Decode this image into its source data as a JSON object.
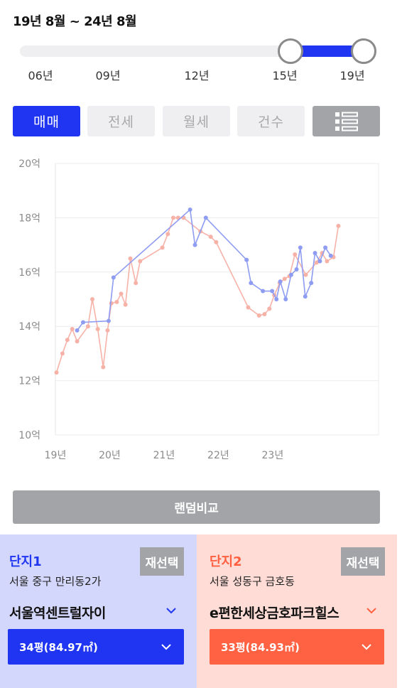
{
  "period": {
    "label": "19년 8월 ~ 24년 8월"
  },
  "slider": {
    "ticks": [
      "06년",
      "09년",
      "12년",
      "15년",
      "19년"
    ]
  },
  "tabs": [
    {
      "label": "매매",
      "active": true
    },
    {
      "label": "전세",
      "active": false
    },
    {
      "label": "월세",
      "active": false
    },
    {
      "label": "건수",
      "active": false
    }
  ],
  "view_toggle": {
    "icon": "list-view-icon"
  },
  "random_button": {
    "label": "랜덤비교"
  },
  "complex1": {
    "title": "단지1",
    "reselect": "재선택",
    "address": "서울 중구 만리동2가",
    "name": "서울역센트럴자이",
    "size": "34평(84.97㎡)",
    "color": "#1f35f2"
  },
  "complex2": {
    "title": "단지2",
    "reselect": "재선택",
    "address": "서울 성동구 금호동",
    "name": "e편한세상금호파크힐스",
    "size": "33평(84.93㎡)",
    "color": "#ff6242"
  },
  "chart_data": {
    "type": "line",
    "y_ticks": [
      "20억",
      "18억",
      "16억",
      "14억",
      "12억",
      "10억"
    ],
    "x_ticks": [
      "19년",
      "20년",
      "21년",
      "22년",
      "23년"
    ],
    "ylim": [
      10,
      20
    ],
    "xlim": [
      2019.0,
      2024.95
    ],
    "grid": true,
    "series": [
      {
        "color": "#8e9cf2",
        "points": [
          [
            2019.4,
            13.85
          ],
          [
            2019.51,
            14.15
          ],
          [
            2019.98,
            14.2
          ],
          [
            2020.07,
            15.8
          ],
          [
            2021.48,
            18.3
          ],
          [
            2021.57,
            17.0
          ],
          [
            2021.77,
            18.0
          ],
          [
            2022.52,
            16.45
          ],
          [
            2022.6,
            15.6
          ],
          [
            2022.82,
            15.3
          ],
          [
            2022.99,
            15.3
          ],
          [
            2023.07,
            15.0
          ],
          [
            2023.14,
            15.65
          ],
          [
            2023.24,
            15.0
          ],
          [
            2023.34,
            15.9
          ],
          [
            2023.44,
            16.1
          ],
          [
            2023.51,
            16.9
          ],
          [
            2023.6,
            15.1
          ],
          [
            2023.71,
            15.6
          ],
          [
            2023.78,
            16.7
          ],
          [
            2023.87,
            16.4
          ],
          [
            2023.97,
            16.9
          ],
          [
            2024.07,
            16.6
          ]
        ]
      },
      {
        "color": "#f7b2a8",
        "points": [
          [
            2019.02,
            12.3
          ],
          [
            2019.13,
            13.0
          ],
          [
            2019.22,
            13.5
          ],
          [
            2019.31,
            13.9
          ],
          [
            2019.4,
            13.45
          ],
          [
            2019.6,
            14.0
          ],
          [
            2019.68,
            15.0
          ],
          [
            2019.78,
            13.9
          ],
          [
            2019.88,
            12.5
          ],
          [
            2019.96,
            13.85
          ],
          [
            2020.03,
            14.85
          ],
          [
            2020.13,
            14.9
          ],
          [
            2020.21,
            15.2
          ],
          [
            2020.29,
            14.8
          ],
          [
            2020.38,
            16.5
          ],
          [
            2020.48,
            15.6
          ],
          [
            2020.56,
            16.4
          ],
          [
            2020.97,
            16.9
          ],
          [
            2021.07,
            17.4
          ],
          [
            2021.17,
            18.0
          ],
          [
            2021.26,
            18.0
          ],
          [
            2021.36,
            18.0
          ],
          [
            2021.67,
            17.5
          ],
          [
            2021.86,
            17.3
          ],
          [
            2021.96,
            17.1
          ],
          [
            2022.55,
            14.7
          ],
          [
            2022.75,
            14.4
          ],
          [
            2022.85,
            14.45
          ],
          [
            2022.94,
            14.65
          ],
          [
            2023.03,
            15.15
          ],
          [
            2023.13,
            15.6
          ],
          [
            2023.22,
            15.75
          ],
          [
            2023.31,
            15.85
          ],
          [
            2023.41,
            16.65
          ],
          [
            2023.61,
            15.9
          ],
          [
            2023.81,
            16.35
          ],
          [
            2023.91,
            16.7
          ],
          [
            2024.0,
            16.4
          ],
          [
            2024.12,
            16.55
          ],
          [
            2024.21,
            17.7
          ]
        ]
      }
    ]
  }
}
